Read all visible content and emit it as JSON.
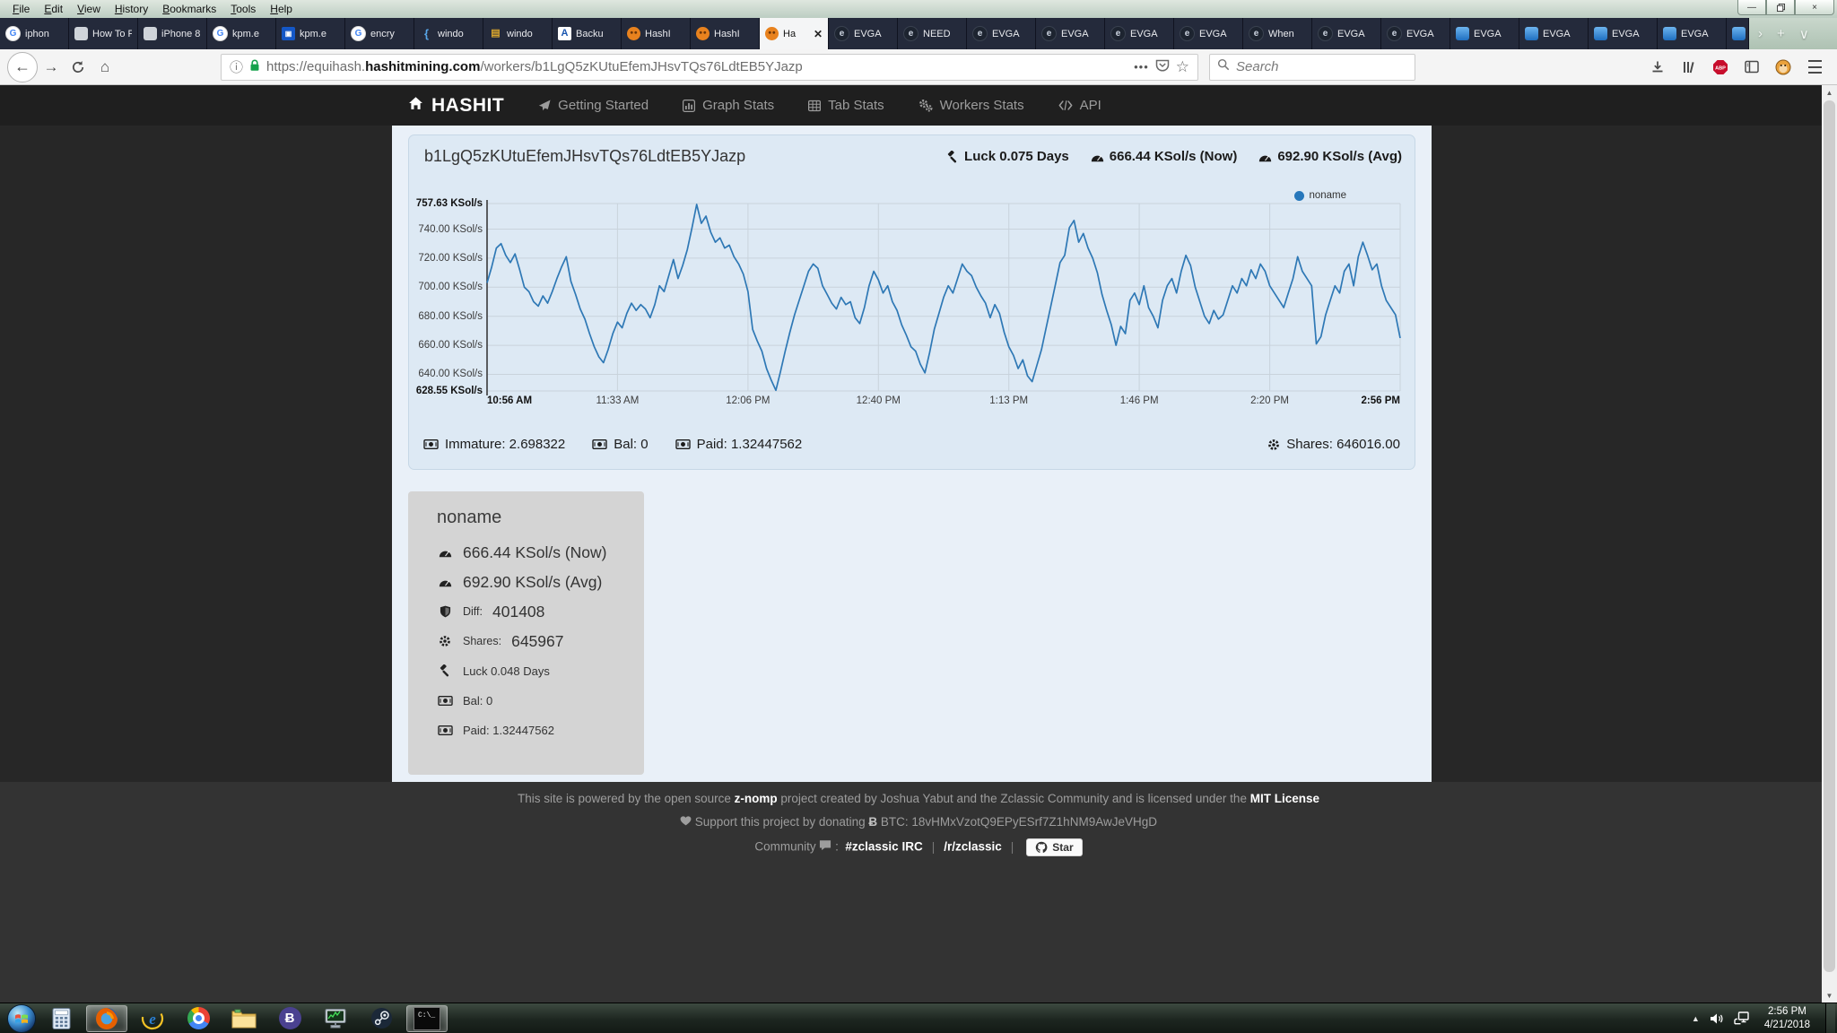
{
  "colors": {
    "chart_line": "#2e78b5",
    "legend_dot": "#2677bb",
    "grid": "#c9d3dc",
    "axis": "#3a3a3a",
    "panel_bg": "#dde9f4",
    "card_bg": "#d4d4d4",
    "navbar_bg": "#1f1f1f",
    "footer_bg": "#333333"
  },
  "browser": {
    "menu": [
      "File",
      "Edit",
      "View",
      "History",
      "Bookmarks",
      "Tools",
      "Help"
    ],
    "window_controls": [
      "minimize",
      "restore",
      "close"
    ],
    "tabs": [
      {
        "label": "iphon",
        "icon": "google"
      },
      {
        "label": "How To Fi",
        "icon": "page"
      },
      {
        "label": "iPhone 8 a",
        "icon": "page"
      },
      {
        "label": "kpm.e",
        "icon": "google"
      },
      {
        "label": "kpm.e",
        "icon": "bluesq"
      },
      {
        "label": "encry",
        "icon": "google"
      },
      {
        "label": "windo",
        "icon": "brace"
      },
      {
        "label": "windo",
        "icon": "gold"
      },
      {
        "label": "Backu",
        "icon": "letterA"
      },
      {
        "label": "HashI",
        "icon": "hashit"
      },
      {
        "label": "HashI",
        "icon": "hashit"
      },
      {
        "label": "Ha",
        "icon": "hashit",
        "active": true
      },
      {
        "label": "EVGA",
        "icon": "evga"
      },
      {
        "label": "NEED",
        "icon": "evga"
      },
      {
        "label": "EVGA",
        "icon": "evga"
      },
      {
        "label": "EVGA",
        "icon": "evga"
      },
      {
        "label": "EVGA",
        "icon": "evga"
      },
      {
        "label": "EVGA",
        "icon": "evga"
      },
      {
        "label": "When",
        "icon": "evga"
      },
      {
        "label": "EVGA",
        "icon": "evga"
      },
      {
        "label": "EVGA",
        "icon": "evga"
      },
      {
        "label": "EVGA",
        "icon": "evgab"
      },
      {
        "label": "EVGA",
        "icon": "evgab"
      },
      {
        "label": "EVGA",
        "icon": "evgab"
      },
      {
        "label": "EVGA",
        "icon": "evgab"
      },
      {
        "label": "",
        "icon": "evgab",
        "partial": true
      }
    ],
    "tab_extras": {
      "overflow": "›",
      "new_tab": "+",
      "list": "∨"
    },
    "url_segments": [
      {
        "text": "https://equihash.",
        "muted": true
      },
      {
        "text": "hashitmining.com",
        "muted": false
      },
      {
        "text": "/workers/b1LgQ5zKUtuEfemJHsvTQs76LdtEB5YJazp",
        "muted": true
      }
    ],
    "search_placeholder": "Search"
  },
  "site": {
    "brand": "HASHIT",
    "nav": [
      {
        "label": "Getting Started",
        "icon": "paper-plane"
      },
      {
        "label": "Graph Stats",
        "icon": "bar-chart"
      },
      {
        "label": "Tab Stats",
        "icon": "table"
      },
      {
        "label": "Workers Stats",
        "icon": "gears"
      },
      {
        "label": "API",
        "icon": "code"
      }
    ],
    "worker_panel": {
      "address": "b1LgQ5zKUtuEfemJHsvTQs76LdtEB5YJazp",
      "header_stats": [
        {
          "icon": "gavel",
          "label": "Luck 0.075 Days"
        },
        {
          "icon": "tachometer",
          "label": "666.44 KSol/s (Now)"
        },
        {
          "icon": "tachometer",
          "label": "692.90 KSol/s (Avg)"
        }
      ],
      "legend_label": "noname",
      "footer_stats_left": [
        {
          "icon": "money",
          "label": "Immature: 2.698322"
        },
        {
          "icon": "money",
          "label": "Bal: 0"
        },
        {
          "icon": "money",
          "label": "Paid: 1.32447562"
        }
      ],
      "footer_stats_right": [
        {
          "icon": "gear",
          "label": "Shares: 646016.00"
        }
      ]
    },
    "worker_card": {
      "title": "noname",
      "rows": [
        {
          "icon": "tachometer",
          "label": "",
          "value": "666.44 KSol/s (Now)",
          "size": "big"
        },
        {
          "icon": "tachometer",
          "label": "",
          "value": "692.90 KSol/s (Avg)",
          "size": "big"
        },
        {
          "icon": "shield",
          "label": "Diff:",
          "value": "401408",
          "size": "big"
        },
        {
          "icon": "gear",
          "label": "Shares:",
          "value": "645967",
          "size": "big"
        },
        {
          "icon": "gavel",
          "label": "",
          "value": "Luck 0.048 Days",
          "size": "small"
        },
        {
          "icon": "money",
          "label": "",
          "value": "Bal: 0",
          "size": "small"
        },
        {
          "icon": "money",
          "label": "",
          "value": "Paid: 1.32447562",
          "size": "small"
        }
      ]
    },
    "footer": {
      "line1": [
        {
          "text": "This site is powered by the open source "
        },
        {
          "text": "z-nomp",
          "strong": true
        },
        {
          "text": " project created by Joshua Yabut and the Zclassic Community and is licensed under the "
        },
        {
          "text": "MIT License",
          "strong": true
        }
      ],
      "line2_prefix": "Support this project by donating",
      "line2_btc_symbol": "Ƀ",
      "line2_address": "BTC: 18vHMxVzotQ9EPyESrf7Z1hNM9AwJeVHgD",
      "line3_prefix": "Community",
      "line3_colon": ":",
      "line3_links": [
        "#zclassic IRC",
        "/r/zclassic"
      ],
      "star_label": "Star"
    }
  },
  "chart_data": {
    "type": "line",
    "title": "",
    "xlabel": "",
    "ylabel": "KSol/s",
    "ylim": [
      628.55,
      757.63
    ],
    "grid": true,
    "legend_position": "top-right",
    "xticks": [
      "10:56 AM",
      "11:33 AM",
      "12:06 PM",
      "12:40 PM",
      "1:13 PM",
      "1:46 PM",
      "2:20 PM",
      "2:56 PM"
    ],
    "yticks": [
      {
        "value": 757.63,
        "label": "757.63 KSol/s",
        "bold": true
      },
      {
        "value": 740.0,
        "label": "740.00 KSol/s",
        "bold": false
      },
      {
        "value": 720.0,
        "label": "720.00 KSol/s",
        "bold": false
      },
      {
        "value": 700.0,
        "label": "700.00 KSol/s",
        "bold": false
      },
      {
        "value": 680.0,
        "label": "680.00 KSol/s",
        "bold": false
      },
      {
        "value": 660.0,
        "label": "660.00 KSol/s",
        "bold": false
      },
      {
        "value": 640.0,
        "label": "640.00 KSol/s",
        "bold": false
      },
      {
        "value": 628.55,
        "label": "628.55 KSol/s",
        "bold": true
      }
    ],
    "series": [
      {
        "name": "noname",
        "color": "#2e78b5",
        "values": [
          703,
          714,
          727,
          730,
          722,
          717,
          723,
          712,
          700,
          697,
          690,
          687,
          694,
          689,
          697,
          706,
          714,
          721,
          704,
          695,
          685,
          678,
          668,
          659,
          652,
          648,
          657,
          668,
          676,
          672,
          682,
          689,
          684,
          688,
          685,
          679,
          688,
          701,
          697,
          708,
          719,
          706,
          715,
          726,
          741,
          757,
          744,
          749,
          738,
          731,
          734,
          727,
          729,
          721,
          716,
          709,
          697,
          671,
          663,
          656,
          644,
          636,
          629,
          642,
          656,
          669,
          681,
          691,
          701,
          711,
          716,
          713,
          701,
          695,
          689,
          685,
          693,
          688,
          690,
          679,
          675,
          686,
          701,
          711,
          705,
          696,
          701,
          690,
          684,
          674,
          667,
          659,
          656,
          647,
          641,
          655,
          671,
          682,
          693,
          701,
          696,
          706,
          716,
          711,
          708,
          700,
          694,
          689,
          679,
          688,
          682,
          669,
          659,
          653,
          644,
          650,
          639,
          635,
          646,
          657,
          672,
          687,
          702,
          717,
          722,
          741,
          746,
          731,
          737,
          727,
          720,
          710,
          695,
          684,
          674,
          660,
          673,
          668,
          691,
          696,
          688,
          701,
          686,
          680,
          672,
          691,
          701,
          706,
          696,
          711,
          722,
          715,
          700,
          690,
          680,
          675,
          684,
          678,
          681,
          691,
          701,
          696,
          706,
          701,
          712,
          706,
          716,
          711,
          701,
          696,
          691,
          686,
          696,
          706,
          721,
          711,
          706,
          701,
          661,
          666,
          681,
          691,
          701,
          696,
          711,
          716,
          701,
          721,
          731,
          722,
          712,
          716,
          701,
          691,
          686,
          681,
          665
        ]
      }
    ]
  },
  "taskbar": {
    "items": [
      {
        "name": "calculator",
        "active": false
      },
      {
        "name": "firefox",
        "active": true
      },
      {
        "name": "internet-explorer",
        "active": false
      },
      {
        "name": "chrome",
        "active": false
      },
      {
        "name": "file-explorer",
        "active": false
      },
      {
        "name": "bitcoin-wallet",
        "active": false
      },
      {
        "name": "mining-monitor",
        "active": false
      },
      {
        "name": "steam",
        "active": false
      },
      {
        "name": "command-prompt",
        "active": true
      }
    ],
    "clock_time": "2:56 PM",
    "clock_date": "4/21/2018"
  }
}
